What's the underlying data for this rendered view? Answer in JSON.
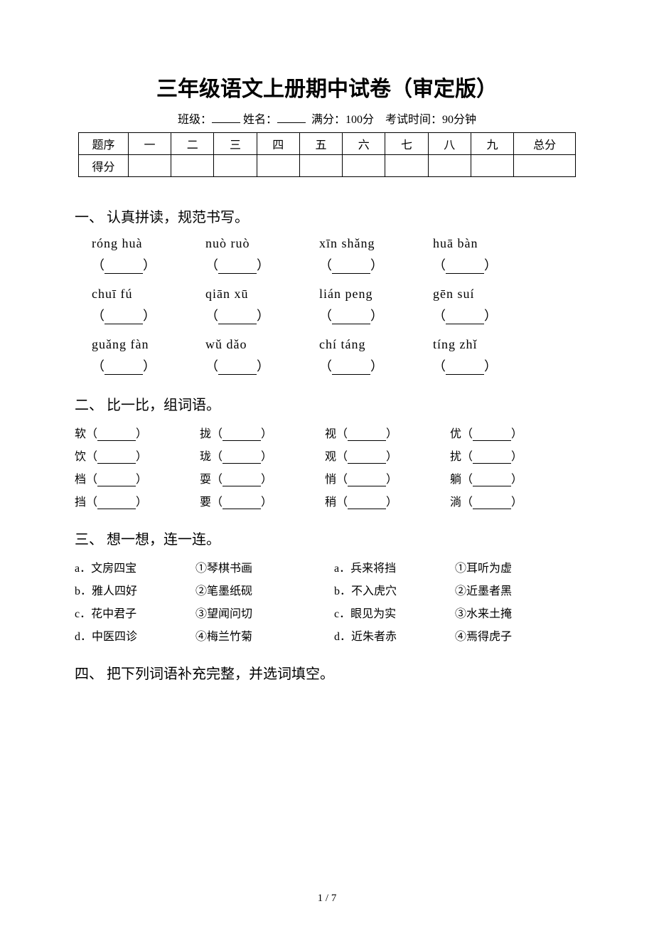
{
  "title": "三年级语文上册期中试卷（审定版）",
  "meta": {
    "class_label": "班级：",
    "name_label": "姓名：",
    "fullscore_label": "满分：100分",
    "duration_label": "考试时间：90分钟"
  },
  "score_table": {
    "headers": [
      "题序",
      "一",
      "二",
      "三",
      "四",
      "五",
      "六",
      "七",
      "八",
      "九",
      "总分"
    ],
    "row2_label": "得分"
  },
  "sections": {
    "s1": {
      "title": "一、 认真拼读，规范书写。"
    },
    "s2": {
      "title": "二、 比一比，组词语。"
    },
    "s3": {
      "title": "三、 想一想，连一连。"
    },
    "s4": {
      "title": "四、 把下列词语补充完整，并选词填空。"
    }
  },
  "pinyin": {
    "row1": [
      "róng huà",
      "nuò ruò",
      "xīn shǎng",
      "huā bàn"
    ],
    "row2": [
      "chuī fú",
      "qiān xū",
      "lián peng",
      "gēn suí"
    ],
    "row3": [
      "guǎng fàn",
      "wǔ dǎo",
      "chí táng",
      "tíng zhǐ"
    ]
  },
  "wordpairs": {
    "rows": [
      [
        "软",
        "拢",
        "视",
        "优"
      ],
      [
        "饮",
        "珑",
        "观",
        "扰"
      ],
      [
        "档",
        "耍",
        "悄",
        "躺"
      ],
      [
        "挡",
        "要",
        "稍",
        "淌"
      ]
    ]
  },
  "match": {
    "rows": [
      {
        "a": "a．文房四宝",
        "b": "①琴棋书画",
        "c": "a．兵来将挡",
        "d": "①耳听为虚"
      },
      {
        "a": "b．雅人四好",
        "b": "②笔墨纸砚",
        "c": "b．不入虎穴",
        "d": "②近墨者黑"
      },
      {
        "a": "c．花中君子",
        "b": "③望闻问切",
        "c": "c．眼见为实",
        "d": "③水来土掩"
      },
      {
        "a": "d．中医四诊",
        "b": "④梅兰竹菊",
        "c": "d．近朱者赤",
        "d": "④焉得虎子"
      }
    ]
  },
  "pagenum": "1 / 7"
}
